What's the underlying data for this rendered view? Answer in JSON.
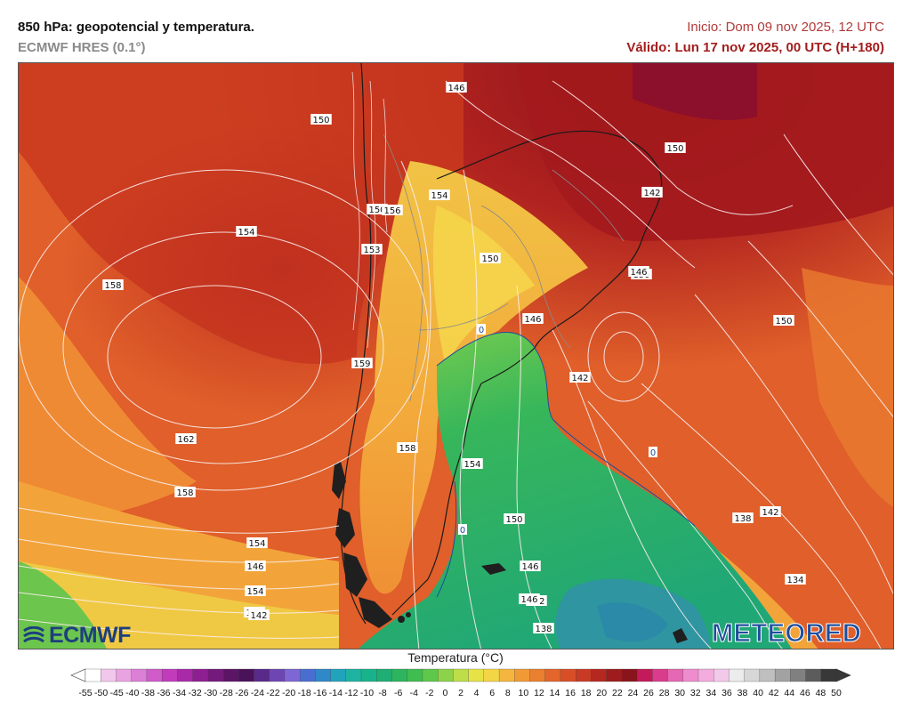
{
  "header": {
    "title": "850 hPa: geopotencial y temperatura.",
    "model": "ECMWF HRES (0.1°)",
    "init": "Inicio: Dom 09 nov 2025, 12 UTC",
    "valid": "Válido: Lun 17 nov 2025, 00 UTC (H+180)"
  },
  "branding": {
    "left_logo": "ECMWF",
    "right_logo": "METEORED"
  },
  "map": {
    "contour_labels": [
      "146",
      "150",
      "150",
      "154",
      "150",
      "156",
      "154",
      "153",
      "158",
      "150",
      "146",
      "150",
      "142",
      "146",
      "142",
      "150",
      "159",
      "162",
      "158",
      "154",
      "158",
      "146",
      "154",
      "150",
      "138",
      "142",
      "146",
      "134",
      "154",
      "150",
      "142",
      "146",
      "142",
      "138"
    ],
    "zero_isotherm_labels": [
      "0",
      "0",
      "0"
    ]
  },
  "colorbar": {
    "title": "Temperatura (°C)",
    "ticks": [
      "-55",
      "-50",
      "-45",
      "-40",
      "-38",
      "-36",
      "-34",
      "-32",
      "-30",
      "-28",
      "-26",
      "-24",
      "-22",
      "-20",
      "-18",
      "-16",
      "-14",
      "-12",
      "-10",
      "-8",
      "-6",
      "-4",
      "-2",
      "0",
      "2",
      "4",
      "6",
      "8",
      "10",
      "12",
      "14",
      "16",
      "18",
      "20",
      "22",
      "24",
      "26",
      "28",
      "30",
      "32",
      "34",
      "36",
      "38",
      "40",
      "42",
      "44",
      "46",
      "48",
      "50"
    ],
    "colors": [
      "#ffffff",
      "#f2c7ec",
      "#e8a3e0",
      "#dc7fd6",
      "#cf5cc9",
      "#c13bbb",
      "#a82aa8",
      "#8e1f92",
      "#741a7c",
      "#5c1466",
      "#4a1258",
      "#5a2a8a",
      "#6e46b4",
      "#7f66d6",
      "#4a6ed0",
      "#2f88c8",
      "#22a3bc",
      "#1eb3a0",
      "#18b38a",
      "#1fae73",
      "#2cb55e",
      "#3fbd4f",
      "#5ec84a",
      "#8ed24a",
      "#bedd48",
      "#e7e346",
      "#f4d546",
      "#f4b63e",
      "#f09a36",
      "#ea7f30",
      "#e2652b",
      "#d84f27",
      "#c93a24",
      "#b52820",
      "#9e1c1d",
      "#8a141b",
      "#c21a5a",
      "#d83c8a",
      "#e667b4",
      "#ee8ccd",
      "#f2acde",
      "#f2c9e8",
      "#ececec",
      "#d7d7d7",
      "#bfbfbf",
      "#a2a2a2",
      "#808080",
      "#5c5c5c",
      "#383838"
    ]
  }
}
